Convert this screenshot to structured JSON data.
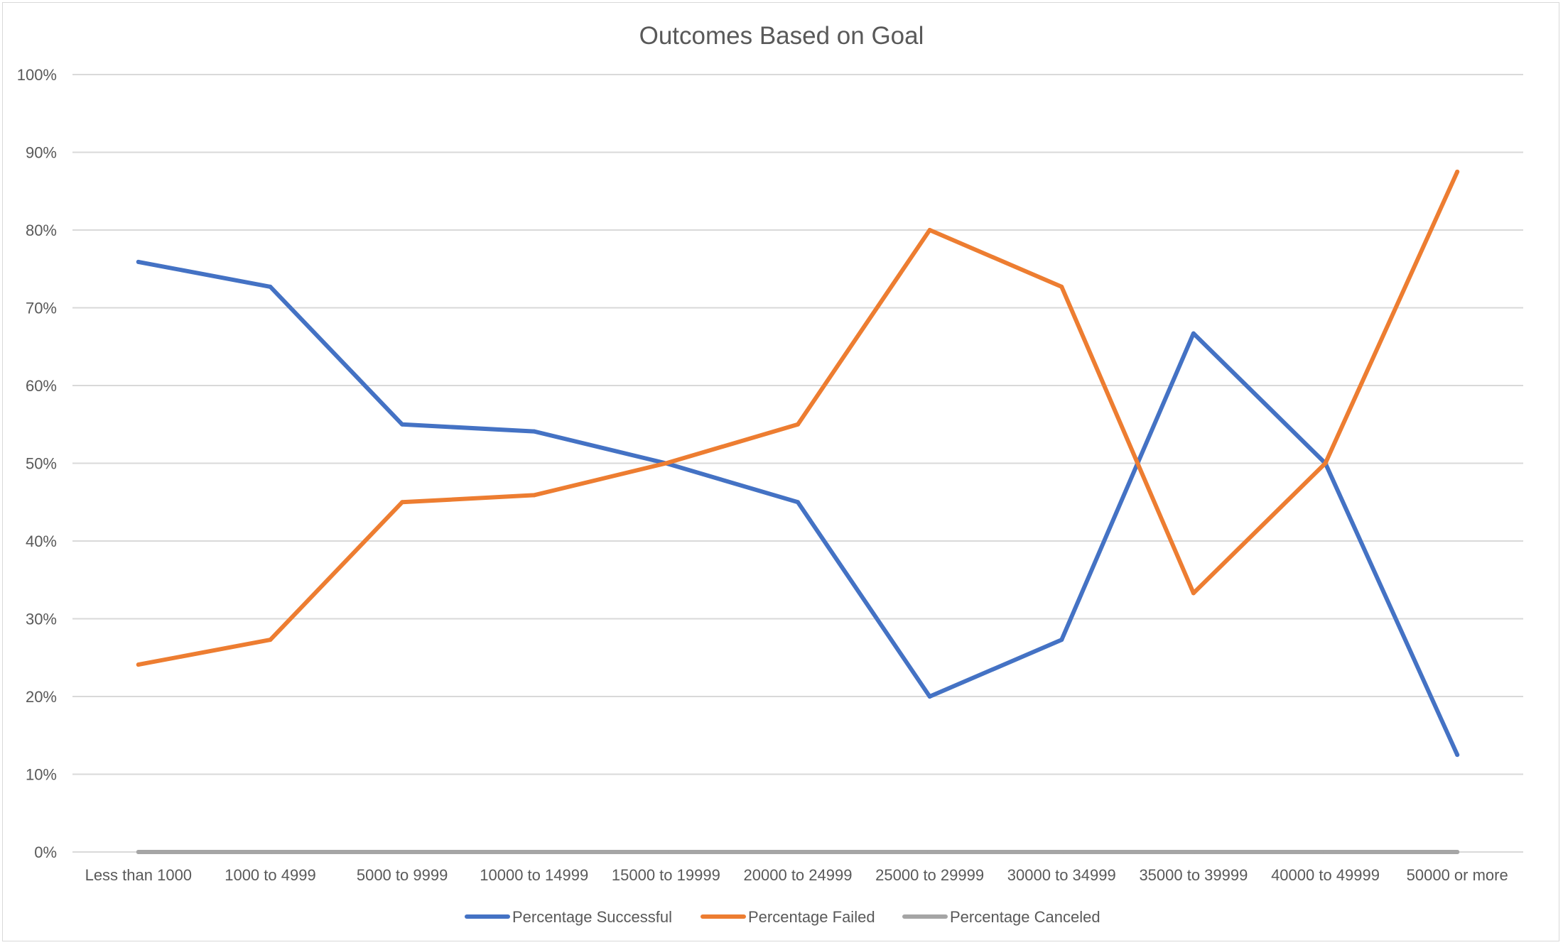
{
  "chart_data": {
    "type": "line",
    "title": "Outcomes Based on Goal",
    "xlabel": "",
    "ylabel": "",
    "ylim": [
      0,
      1
    ],
    "ytick_values": [
      0,
      0.1,
      0.2,
      0.3,
      0.4,
      0.5,
      0.6,
      0.7,
      0.8,
      0.9,
      1.0
    ],
    "ytick_labels": [
      "0%",
      "10%",
      "20%",
      "30%",
      "40%",
      "50%",
      "60%",
      "70%",
      "80%",
      "90%",
      "100%"
    ],
    "categories": [
      "Less than 1000",
      "1000 to 4999",
      "5000 to 9999",
      "10000 to 14999",
      "15000 to 19999",
      "20000 to 24999",
      "25000 to 29999",
      "30000 to 34999",
      "35000 to 39999",
      "40000 to 49999",
      "50000 or more"
    ],
    "series": [
      {
        "name": "Percentage Successful",
        "color": "#4472c4",
        "values": [
          0.759,
          0.727,
          0.55,
          0.541,
          0.5,
          0.45,
          0.2,
          0.273,
          0.667,
          0.5,
          0.125
        ]
      },
      {
        "name": "Percentage Failed",
        "color": "#ed7d31",
        "values": [
          0.241,
          0.273,
          0.45,
          0.459,
          0.5,
          0.55,
          0.8,
          0.727,
          0.333,
          0.5,
          0.875
        ]
      },
      {
        "name": "Percentage Canceled",
        "color": "#a5a5a5",
        "values": [
          0,
          0,
          0,
          0,
          0,
          0,
          0,
          0,
          0,
          0,
          0
        ]
      }
    ],
    "grid": true,
    "legend_position": "bottom"
  }
}
